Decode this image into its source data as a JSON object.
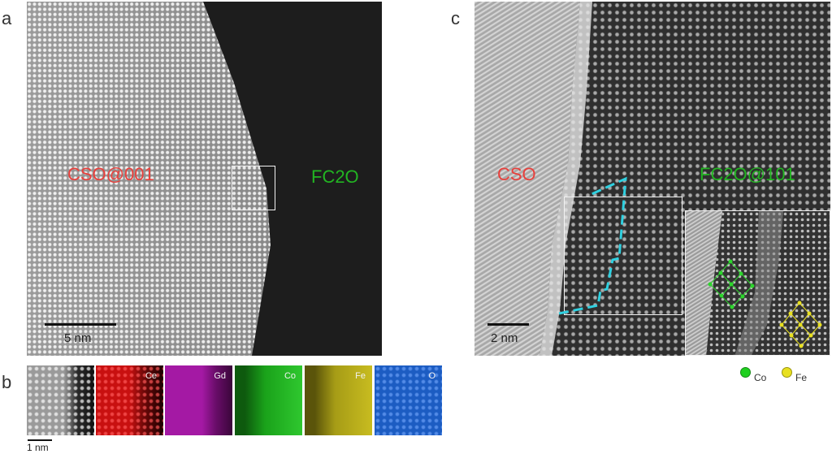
{
  "panel_labels": {
    "a": "a",
    "b": "b",
    "c": "c"
  },
  "panel_a": {
    "region_left_label": "CSO@001",
    "region_right_label": "FC2O",
    "scale_label": "5 nm",
    "colors": {
      "left_label": "#e8403c",
      "right_label": "#22b422"
    }
  },
  "panel_b": {
    "maps": [
      {
        "name": "",
        "color": "#a0a0a0"
      },
      {
        "name": "Ce",
        "color": "#d21010"
      },
      {
        "name": "Gd",
        "color": "#b01ab0"
      },
      {
        "name": "Co",
        "color": "#1fb81f"
      },
      {
        "name": "Fe",
        "color": "#bdb21a"
      },
      {
        "name": "O",
        "color": "#1f5fc8"
      }
    ],
    "scale_label": "1 nm"
  },
  "panel_c": {
    "region_left_label": "CSO",
    "region_right_label": "FC2O@101",
    "scale_label": "2 nm",
    "colors": {
      "left_label": "#e8403c",
      "right_label": "#22b422",
      "boundary": "#2fd0e0"
    }
  },
  "legend": [
    {
      "label": "Co",
      "color": "#1fd01f"
    },
    {
      "label": "Fe",
      "color": "#e8e020"
    }
  ]
}
